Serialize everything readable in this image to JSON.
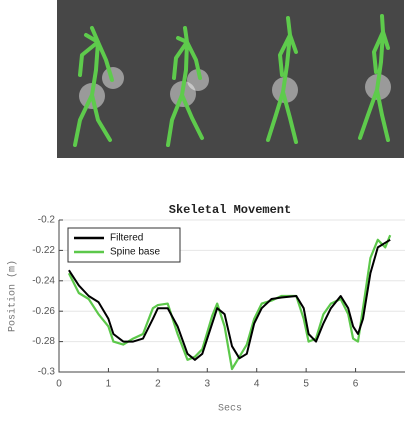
{
  "chart_data": {
    "type": "line",
    "title": "Skeletal Movement",
    "xlabel": "Secs",
    "ylabel": "Position (m)",
    "x": [
      0.2,
      0.4,
      0.6,
      0.8,
      1.0,
      1.1,
      1.3,
      1.5,
      1.7,
      1.9,
      2.0,
      2.2,
      2.4,
      2.6,
      2.75,
      2.9,
      3.1,
      3.2,
      3.35,
      3.5,
      3.65,
      3.8,
      3.95,
      4.1,
      4.3,
      4.5,
      4.8,
      4.95,
      5.05,
      5.2,
      5.35,
      5.5,
      5.7,
      5.85,
      5.95,
      6.05,
      6.15,
      6.3,
      6.45,
      6.6,
      6.7
    ],
    "series": [
      {
        "name": "Filtered",
        "color": "#000000",
        "values": [
          -0.233,
          -0.243,
          -0.25,
          -0.254,
          -0.265,
          -0.275,
          -0.28,
          -0.28,
          -0.278,
          -0.265,
          -0.258,
          -0.258,
          -0.27,
          -0.288,
          -0.292,
          -0.288,
          -0.268,
          -0.258,
          -0.262,
          -0.283,
          -0.291,
          -0.288,
          -0.268,
          -0.258,
          -0.252,
          -0.251,
          -0.25,
          -0.258,
          -0.275,
          -0.28,
          -0.268,
          -0.258,
          -0.25,
          -0.258,
          -0.27,
          -0.275,
          -0.265,
          -0.235,
          -0.218,
          -0.215,
          -0.213
        ]
      },
      {
        "name": "Spine base",
        "color": "#5cc84a",
        "values": [
          -0.235,
          -0.248,
          -0.252,
          -0.262,
          -0.27,
          -0.28,
          -0.282,
          -0.278,
          -0.275,
          -0.258,
          -0.256,
          -0.255,
          -0.275,
          -0.292,
          -0.29,
          -0.285,
          -0.263,
          -0.255,
          -0.27,
          -0.298,
          -0.29,
          -0.282,
          -0.265,
          -0.255,
          -0.253,
          -0.25,
          -0.25,
          -0.265,
          -0.28,
          -0.278,
          -0.262,
          -0.255,
          -0.252,
          -0.262,
          -0.278,
          -0.28,
          -0.258,
          -0.225,
          -0.213,
          -0.218,
          -0.21
        ]
      }
    ],
    "xlim": [
      0,
      7
    ],
    "xticks": [
      0,
      1,
      2,
      3,
      4,
      5,
      6
    ],
    "ylim": [
      -0.3,
      -0.2
    ],
    "yticks": [
      -0.3,
      -0.28,
      -0.26,
      -0.24,
      -0.22,
      -0.2
    ],
    "grid": true,
    "legend": "upper left"
  }
}
